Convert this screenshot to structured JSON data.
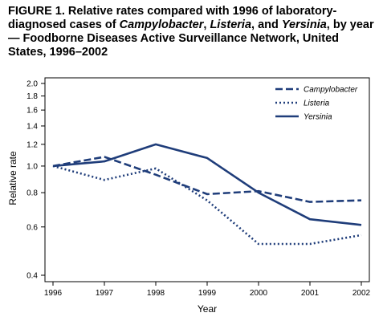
{
  "title": {
    "prefix": "FIGURE 1. Relative rates compared with 1996 of laboratory-diagnosed cases of ",
    "em1": "Campylobacter",
    "sep1": ", ",
    "em2": "Listeria",
    "sep2": ", and ",
    "em3": "Yersinia",
    "suffix": ", by year — Foodborne Diseases Active Surveillance Network, United States, 1996–2002"
  },
  "colors": {
    "series": "#1f3d7a",
    "axis": "#000000"
  },
  "chart_data": {
    "type": "line",
    "xlabel": "Year",
    "ylabel": "Relative rate",
    "yscale": "log",
    "ylim": [
      0.4,
      2.0
    ],
    "yticks": [
      "0.4",
      "0.6",
      "0.8",
      "1.0",
      "1.2",
      "1.4",
      "1.6",
      "1.8",
      "2.0"
    ],
    "ytick_values": [
      0.4,
      0.6,
      0.8,
      1.0,
      1.2,
      1.4,
      1.6,
      1.8,
      2.0
    ],
    "x": [
      "1996",
      "1997",
      "1998",
      "1999",
      "2000",
      "2001",
      "2002"
    ],
    "legend_position": "top-right",
    "series": [
      {
        "name": "Campylobacter",
        "style": "dashed",
        "values": [
          1.0,
          1.08,
          0.93,
          0.79,
          0.81,
          0.74,
          0.75
        ]
      },
      {
        "name": "Listeria",
        "style": "dotted",
        "values": [
          1.0,
          0.89,
          0.98,
          0.75,
          0.52,
          0.52,
          0.56
        ]
      },
      {
        "name": "Yersinia",
        "style": "solid",
        "values": [
          1.0,
          1.04,
          1.2,
          1.07,
          0.8,
          0.64,
          0.61
        ]
      }
    ]
  }
}
